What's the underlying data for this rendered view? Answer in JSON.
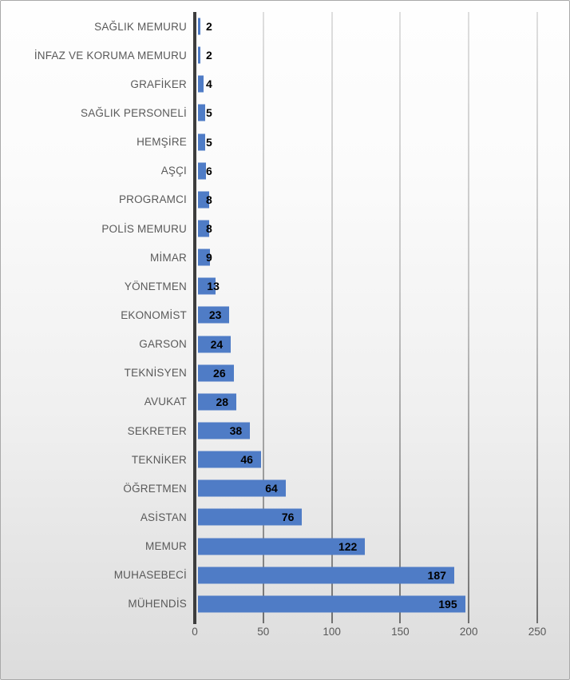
{
  "chart_data": {
    "type": "bar",
    "orientation": "horizontal",
    "title": "",
    "xlabel": "",
    "ylabel": "",
    "categories": [
      "SAĞLIK MEMURU",
      "İNFAZ VE KORUMA MEMURU",
      "GRAFİKER",
      "SAĞLIK PERSONELİ",
      "HEMŞİRE",
      "AŞÇI",
      "PROGRAMCI",
      "POLİS MEMURU",
      "MİMAR",
      "YÖNETMEN",
      "EKONOMİST",
      "GARSON",
      "TEKNİSYEN",
      "AVUKAT",
      "SEKRETER",
      "TEKNİKER",
      "ÖĞRETMEN",
      "ASİSTAN",
      "MEMUR",
      "MUHASEBECİ",
      "MÜHENDİS"
    ],
    "values": [
      2,
      2,
      4,
      5,
      5,
      6,
      8,
      8,
      9,
      13,
      23,
      24,
      26,
      28,
      38,
      46,
      64,
      76,
      122,
      187,
      195
    ],
    "data_labels": true,
    "xlim": [
      0,
      250
    ],
    "xticks": [
      0,
      50,
      100,
      150,
      200,
      250
    ],
    "grid": true,
    "legend": false,
    "colors": {
      "bar": "#4f7cc6",
      "category_label": "#595959",
      "value_label": "#000000",
      "axis_line": "#3d3d3d",
      "gridline": "#8f8f8f",
      "border": "#a9a9a9"
    }
  }
}
